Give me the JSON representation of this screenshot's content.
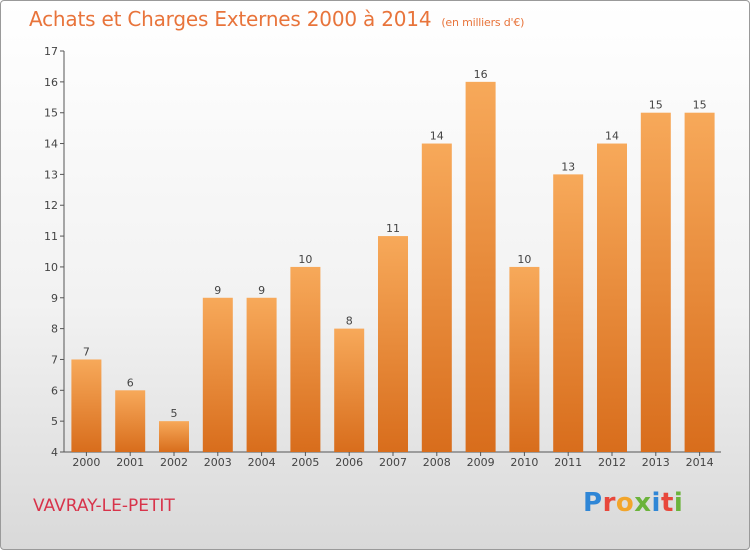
{
  "header": {
    "title": "Achats et Charges Externes 2000 à 2014",
    "subtitle": "(en milliers d'€)"
  },
  "footer": {
    "commune": "VAVRAY-LE-PETIT",
    "logo_letters": [
      "P",
      "r",
      "o",
      "x",
      "i",
      "t",
      "i"
    ],
    "logo_colors": [
      "#2f86d6",
      "#e8473b",
      "#f2a52b",
      "#6bb33b",
      "#2f86d6",
      "#e8473b",
      "#6bb33b"
    ]
  },
  "colors": {
    "bar_top": "#f7a95a",
    "bar_bottom": "#d86d1c",
    "title": "#e8743b",
    "commune": "#d8334a"
  },
  "chart_data": {
    "type": "bar",
    "title": "Achats et Charges Externes 2000 à 2014",
    "subtitle": "(en milliers d'€)",
    "categories": [
      "2000",
      "2001",
      "2002",
      "2003",
      "2004",
      "2005",
      "2006",
      "2007",
      "2008",
      "2009",
      "2010",
      "2011",
      "2012",
      "2013",
      "2014"
    ],
    "values": [
      7,
      6,
      5,
      9,
      9,
      10,
      8,
      11,
      14,
      16,
      10,
      13,
      14,
      15,
      15
    ],
    "ylim": [
      4,
      17
    ],
    "yticks": [
      4,
      5,
      6,
      7,
      8,
      9,
      10,
      11,
      12,
      13,
      14,
      15,
      16,
      17
    ],
    "xlabel": "",
    "ylabel": "",
    "grid": false,
    "data_labels": true
  }
}
